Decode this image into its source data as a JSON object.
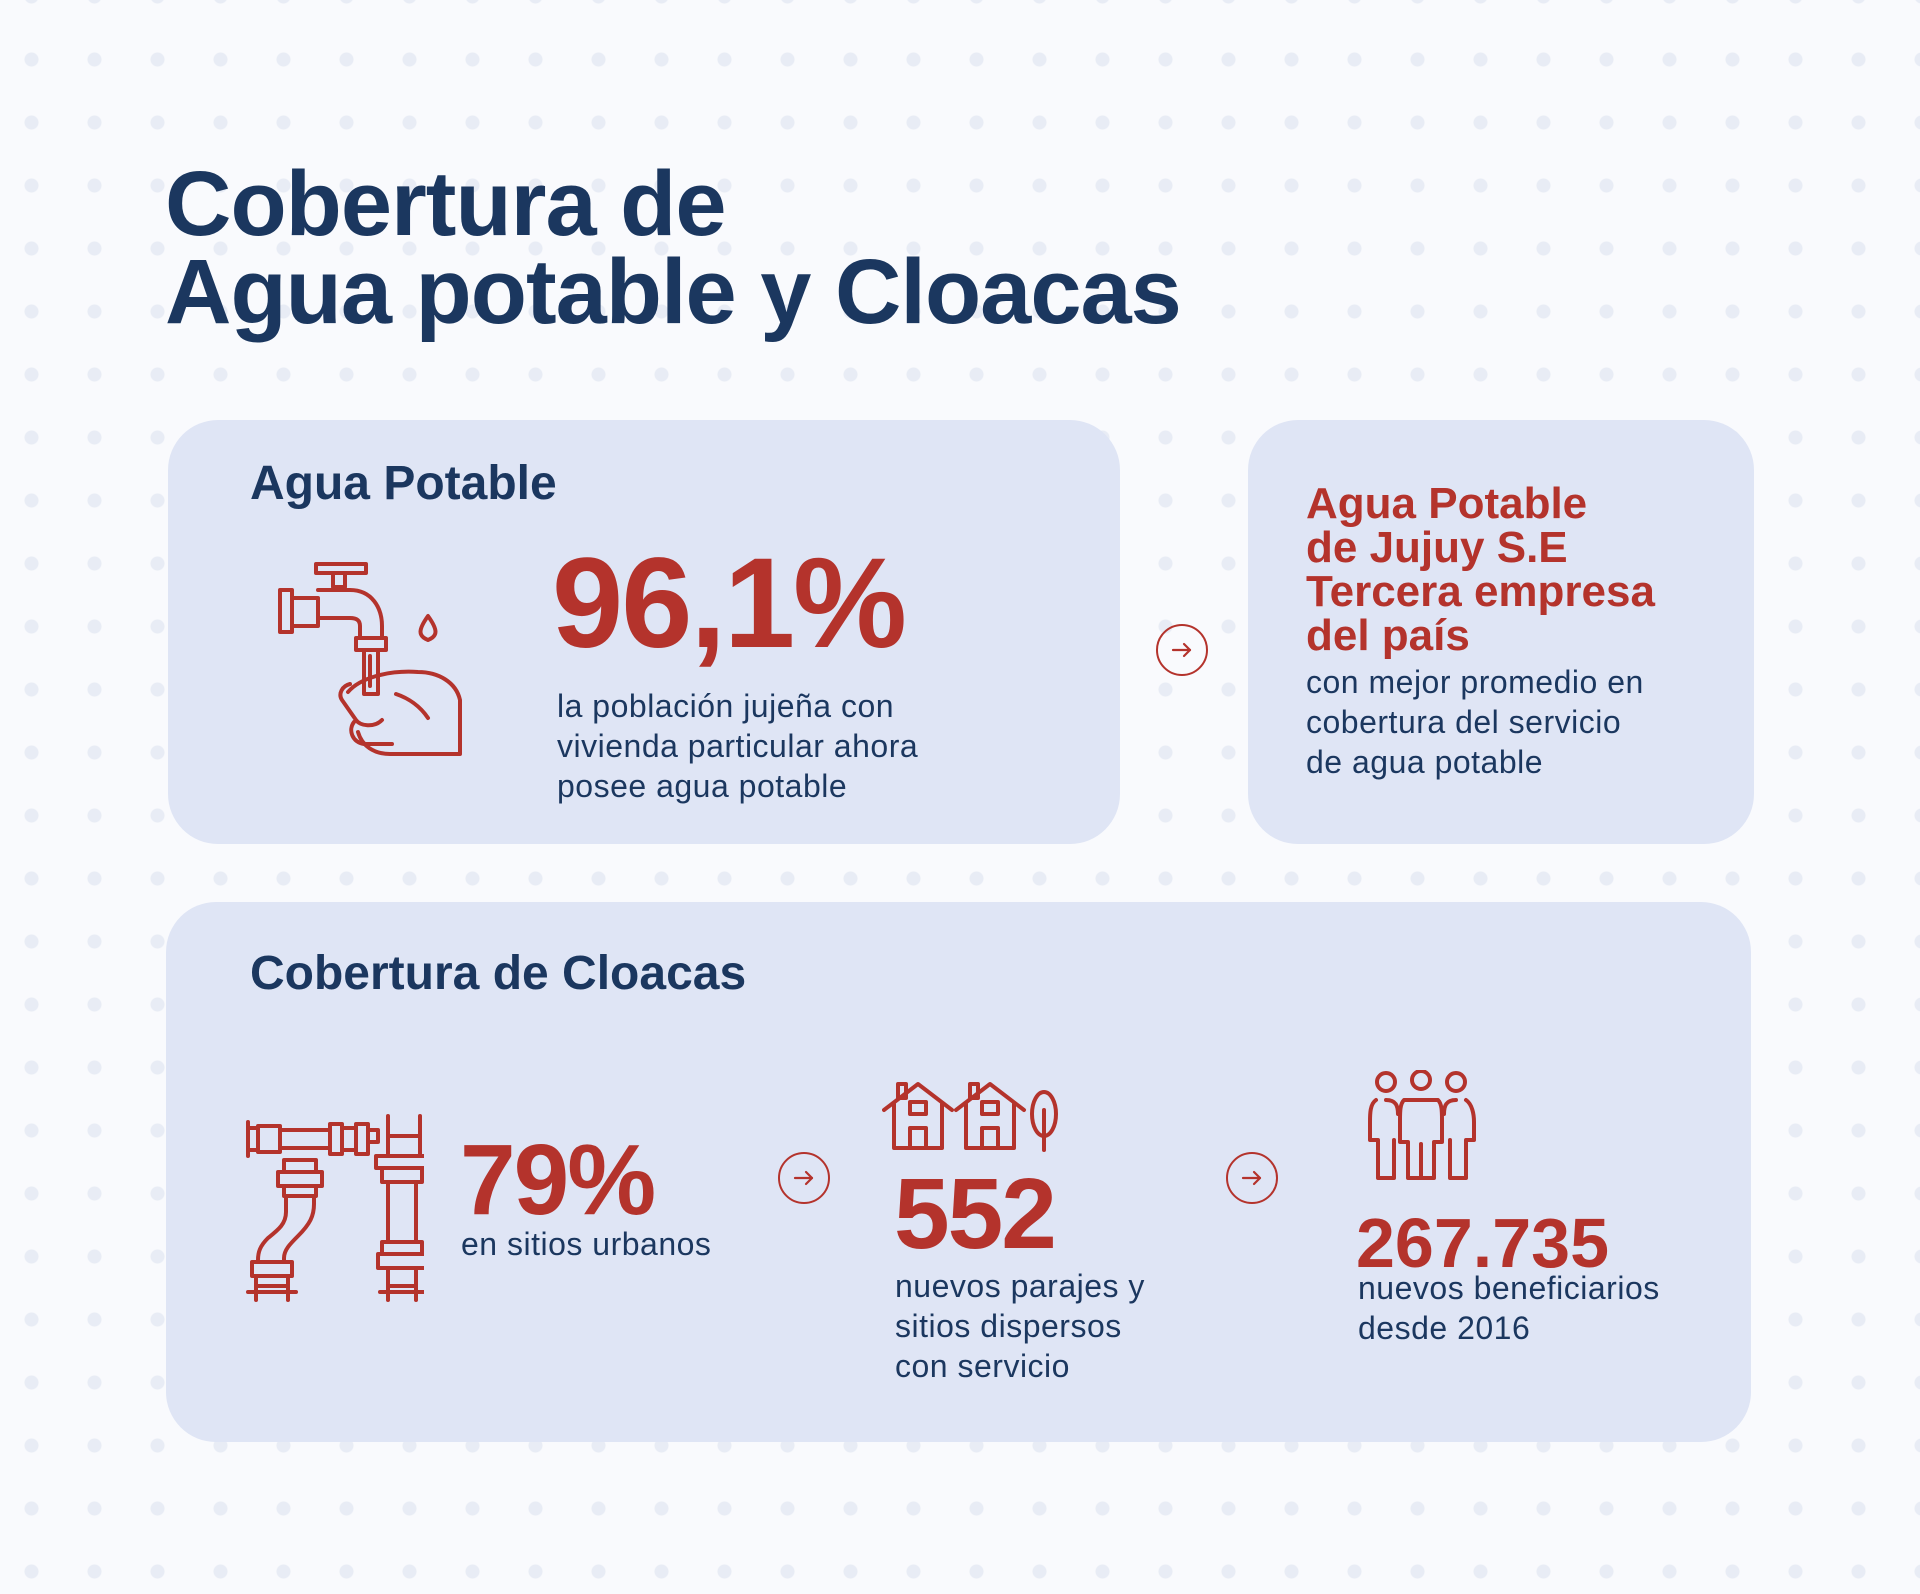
{
  "title": {
    "line1": "Cobertura de",
    "line2": "Agua potable y Cloacas"
  },
  "agua": {
    "heading": "Agua Potable",
    "percent": "96,1%",
    "desc_lines": [
      "la población jujeña con",
      "vivienda particular ahora",
      "posee agua potable"
    ]
  },
  "empresa": {
    "head_lines": [
      "Agua Potable",
      "de Jujuy S.E",
      "Tercera empresa",
      "del país"
    ],
    "desc_lines": [
      "con mejor promedio en",
      "cobertura del servicio",
      "de agua potable"
    ]
  },
  "cloacas": {
    "heading": "Cobertura de Cloacas",
    "stat1": {
      "value": "79%",
      "desc_lines": [
        "en sitios urbanos"
      ]
    },
    "stat2": {
      "value": "552",
      "desc_lines": [
        "nuevos parajes y",
        "sitios dispersos",
        "con servicio"
      ]
    },
    "stat3": {
      "value": "267.735",
      "desc_lines": [
        "nuevos beneficiarios",
        "desde 2016"
      ]
    }
  },
  "icons": {
    "faucet": "faucet-hand-icon",
    "pipes": "pipes-icon",
    "houses": "houses-tree-icon",
    "people": "people-group-icon",
    "arrow": "arrow-right-circle-icon"
  },
  "colors": {
    "navy": "#1b375f",
    "red": "#b4332c",
    "card": "#dfe5f5",
    "background": "#f9fafd"
  }
}
